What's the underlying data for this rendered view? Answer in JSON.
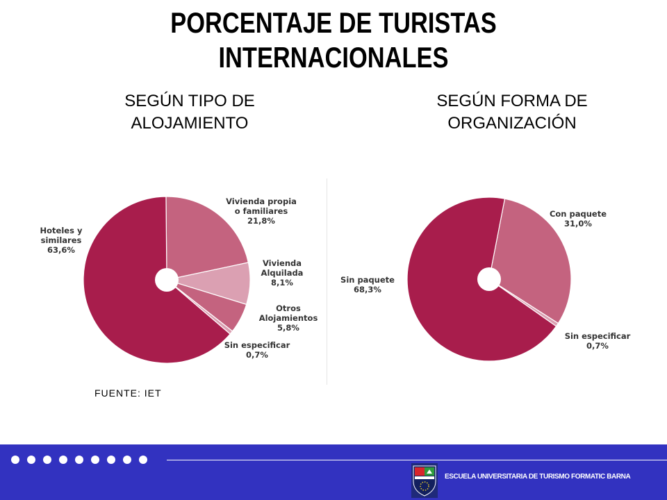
{
  "title": {
    "line1": "PORCENTAJE DE TURISTAS",
    "line2": "INTERNACIONALES"
  },
  "subtitles": {
    "left": {
      "line1": "SEGÚN TIPO DE",
      "line2": "ALOJAMIENTO"
    },
    "right": {
      "line1": "SEGÚN FORMA DE",
      "line2": "ORGANIZACIÓN"
    }
  },
  "source": "FUENTE: IET",
  "footer": {
    "school_name": "ESCUELA UNIVERSITARIA DE TURISMO FORMATIC BARNA"
  },
  "colors": {
    "footer_bg": "#3232c0",
    "slice_dark": "#a81d4c",
    "slice_mid": "#c4637f",
    "slice_light": "#dba0b2"
  },
  "chart_data": [
    {
      "type": "pie",
      "title": "SEGÚN TIPO DE ALOJAMIENTO",
      "slices": [
        {
          "label": [
            "Vivienda propia",
            "o familiares",
            "21,8%"
          ],
          "value": 21.8,
          "color": "#c4637f"
        },
        {
          "label": [
            "Vivienda",
            "Alquilada",
            "8,1%"
          ],
          "value": 8.1,
          "color": "#dba0b2"
        },
        {
          "label": [
            "Otros",
            "Alojamientos",
            "5,8%"
          ],
          "value": 5.8,
          "color": "#c4637f"
        },
        {
          "label": [
            "Sin especificar",
            "0,7%"
          ],
          "value": 0.7,
          "color": "#dba0b2"
        },
        {
          "label": [
            "Hoteles y",
            "similares",
            "63,6%"
          ],
          "value": 63.6,
          "color": "#a81d4c"
        }
      ]
    },
    {
      "type": "pie",
      "title": "SEGÚN FORMA DE ORGANIZACIÓN",
      "slices": [
        {
          "label": [
            "Con paquete",
            "31,0%"
          ],
          "value": 31.0,
          "color": "#c4637f"
        },
        {
          "label": [
            "Sin especificar",
            "0,7%"
          ],
          "value": 0.7,
          "color": "#dba0b2"
        },
        {
          "label": [
            "Sin paquete",
            "68,3%"
          ],
          "value": 68.3,
          "color": "#a81d4c"
        }
      ]
    }
  ]
}
